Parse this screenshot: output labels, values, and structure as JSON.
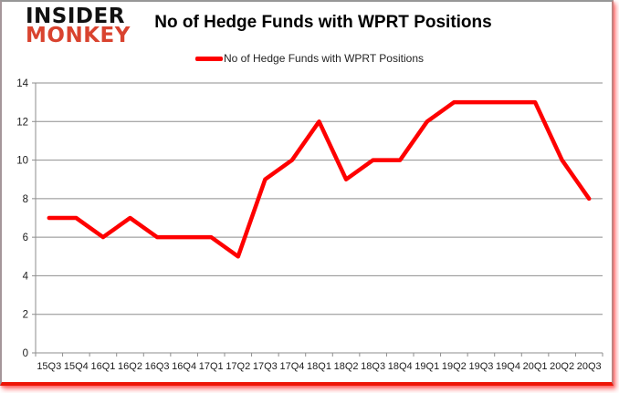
{
  "logo": {
    "line1": "INSIDER",
    "line2": "MONKEY"
  },
  "title": "No of Hedge Funds with WPRT Positions",
  "legend": {
    "label": "No of Hedge Funds with WPRT Positions"
  },
  "colors": {
    "line": "#fe0000",
    "grid": "#8e8e8e",
    "axis": "#8e8e8e",
    "tick_text": "#1c1c1c",
    "logo_black": "#111111",
    "logo_red": "#d9432f",
    "frame_bottom": "#ee1506"
  },
  "chart_data": {
    "type": "line",
    "title": "No of Hedge Funds with WPRT Positions",
    "categories": [
      "15Q3",
      "15Q4",
      "16Q1",
      "16Q2",
      "16Q3",
      "16Q4",
      "17Q1",
      "17Q2",
      "17Q3",
      "17Q4",
      "18Q1",
      "18Q2",
      "18Q3",
      "18Q4",
      "19Q1",
      "19Q2",
      "19Q3",
      "19Q4",
      "20Q1",
      "20Q2",
      "20Q3"
    ],
    "series": [
      {
        "name": "No of Hedge Funds with WPRT Positions",
        "color": "#fe0000",
        "values": [
          7,
          7,
          6,
          7,
          6,
          6,
          6,
          5,
          9,
          10,
          12,
          9,
          10,
          10,
          12,
          13,
          13,
          13,
          13,
          10,
          8
        ]
      }
    ],
    "xlabel": "",
    "ylabel": "",
    "ylim": [
      0,
      14
    ],
    "ytick_step": 2,
    "grid": "horizontal",
    "legend_position": "top-center"
  }
}
